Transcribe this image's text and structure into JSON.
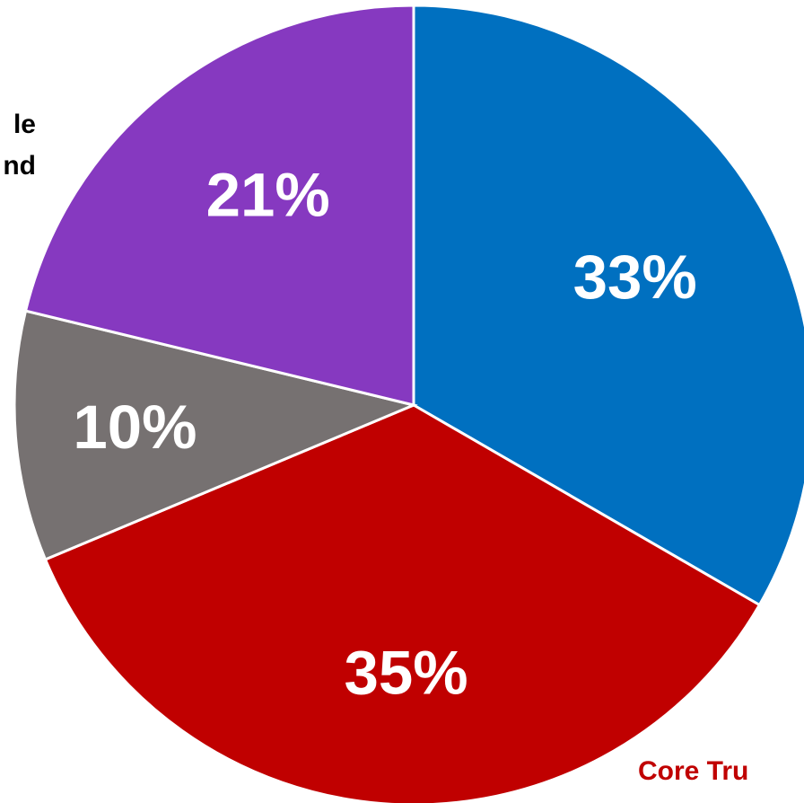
{
  "chart_data": {
    "type": "pie",
    "start_angle_deg": 0,
    "direction": "clockwise",
    "slices": [
      {
        "value": 33,
        "label": "33%",
        "color": "#0070C0",
        "category": ""
      },
      {
        "value": 35,
        "label": "35%",
        "color": "#C00000",
        "category": "Core Tru"
      },
      {
        "value": 10,
        "label": "10%",
        "color": "#767171",
        "category": ""
      },
      {
        "value": 21,
        "label": "21%",
        "color": "#8639C0",
        "category": "le\nnd"
      }
    ]
  },
  "colors": {
    "category_label_default": "#000000",
    "category_label_core": "#C00000",
    "slice_border": "#FFFFFF"
  }
}
